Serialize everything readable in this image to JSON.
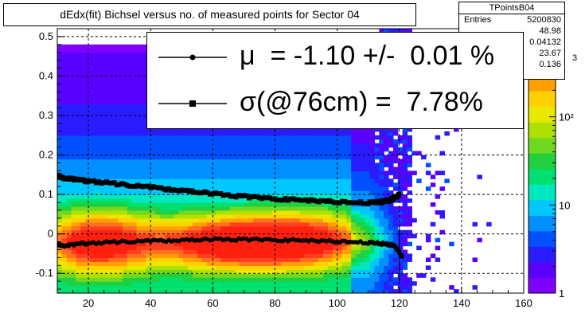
{
  "title": "dEdx(fit) Bichsel versus no. of measured points for Sector 04",
  "stats": {
    "name": "TPointsB04",
    "rows": [
      {
        "key": "Entries",
        "value": "5200830"
      },
      {
        "key": "",
        "value": "48.98"
      },
      {
        "key": "",
        "value": "0.04132"
      },
      {
        "key": "",
        "value": "23.67"
      },
      {
        "key": "",
        "value": "0.136"
      }
    ]
  },
  "legend": {
    "entries": [
      {
        "label": "μ  = -1.10 +/-  0.01 %",
        "marker": "circle"
      },
      {
        "label": "σ(@76cm) =  7.78%",
        "marker": "square"
      }
    ]
  },
  "colorbar": {
    "ticks": [
      "1",
      "10",
      "10²"
    ],
    "partial_label": "3"
  },
  "colors": {
    "mu_series": "#000000",
    "sigma_series": "#000000",
    "grid": "#000000"
  },
  "chart_data": {
    "type": "heatmap",
    "title": "dEdx(fit) Bichsel versus no. of measured points for Sector 04",
    "xlabel": "",
    "ylabel": "",
    "xlim": [
      10,
      160
    ],
    "ylim": [
      -0.15,
      0.52
    ],
    "zscale": "log",
    "zlim": [
      1,
      1000
    ],
    "grid": true,
    "x_ticks": [
      20,
      40,
      60,
      80,
      100,
      120,
      140,
      160
    ],
    "y_ticks": [
      -0.1,
      0,
      0.1,
      0.2,
      0.3,
      0.4,
      0.5
    ],
    "legend_position": "top-right",
    "series": [
      {
        "name": "μ",
        "marker": "circle",
        "x": [
          10,
          12,
          14,
          16,
          18,
          20,
          25,
          30,
          35,
          40,
          45,
          50,
          55,
          60,
          65,
          70,
          75,
          80,
          85,
          90,
          95,
          100,
          105,
          110,
          113,
          115,
          117,
          118,
          119,
          120,
          121
        ],
        "y": [
          -0.025,
          -0.03,
          -0.028,
          -0.026,
          -0.024,
          -0.024,
          -0.022,
          -0.02,
          -0.019,
          -0.018,
          -0.017,
          -0.016,
          -0.015,
          -0.014,
          -0.014,
          -0.014,
          -0.014,
          -0.015,
          -0.016,
          -0.017,
          -0.018,
          -0.019,
          -0.02,
          -0.022,
          -0.024,
          -0.025,
          -0.027,
          -0.028,
          -0.035,
          -0.045,
          -0.06
        ]
      },
      {
        "name": "σ(@76cm)",
        "marker": "square",
        "x": [
          10,
          12,
          14,
          16,
          18,
          20,
          25,
          30,
          35,
          40,
          45,
          50,
          55,
          60,
          65,
          70,
          75,
          80,
          85,
          90,
          95,
          100,
          105,
          110,
          113,
          115,
          117,
          118,
          119,
          120
        ],
        "y": [
          0.148,
          0.142,
          0.14,
          0.138,
          0.136,
          0.134,
          0.13,
          0.126,
          0.122,
          0.118,
          0.114,
          0.11,
          0.106,
          0.102,
          0.098,
          0.095,
          0.092,
          0.089,
          0.087,
          0.085,
          0.083,
          0.081,
          0.08,
          0.079,
          0.08,
          0.082,
          0.086,
          0.09,
          0.095,
          0.1
        ]
      }
    ]
  }
}
